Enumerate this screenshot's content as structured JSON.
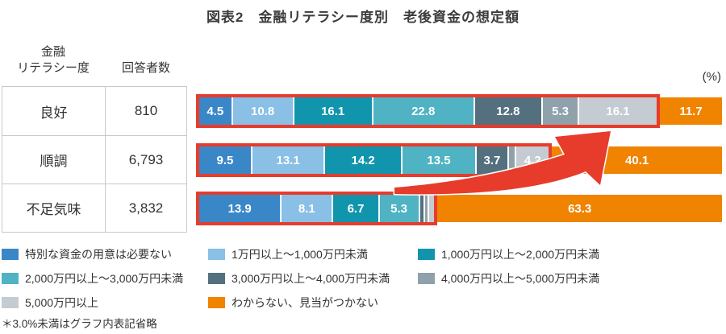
{
  "title": "図表2　金融リテラシー度別　老後資金の想定額",
  "unit_label": "(%)",
  "table": {
    "header": {
      "col1_line1": "金融",
      "col1_line2": "リテラシー度",
      "col2": "回答者数"
    },
    "rows": [
      {
        "literacy": "良好",
        "respondents": "810"
      },
      {
        "literacy": "順調",
        "respondents": "6,793"
      },
      {
        "literacy": "不足気味",
        "respondents": "3,832"
      }
    ]
  },
  "chart_data": {
    "type": "bar",
    "subtype": "horizontal-stacked",
    "unit": "%",
    "xlim": [
      0,
      100
    ],
    "label_min": 3.0,
    "label_rule": "＊3.0%未満はグラフ内表記省略 (segments under 3.0% are unlabeled; their values are estimated from segment widths)",
    "categories": [
      "特別な資金の用意は必要ない",
      "1万円以上～1,000万円未満",
      "1,000万円以上～2,000万円未満",
      "2,000万円以上～3,000万円未満",
      "3,000万円以上～4,000万円未満",
      "4,000万円以上～5,000万円未満",
      "5,000万円以上",
      "わからない、見当がつかない"
    ],
    "colors": [
      "#3a87c8",
      "#8abfe6",
      "#1095ad",
      "#4fb3c3",
      "#54707e",
      "#8fa2ab",
      "#c4cbd2",
      "#f08300"
    ],
    "rows": [
      {
        "group": "良好",
        "respondents": 810,
        "values": [
          4.5,
          10.8,
          16.1,
          22.8,
          12.8,
          5.3,
          16.1,
          11.7
        ]
      },
      {
        "group": "順調",
        "respondents": 6793,
        "values": [
          9.5,
          13.1,
          14.2,
          13.5,
          3.7,
          1.7,
          4.2,
          40.1
        ]
      },
      {
        "group": "不足気味",
        "respondents": 3832,
        "values": [
          13.9,
          8.1,
          6.7,
          5.3,
          0.9,
          0.5,
          1.3,
          63.3
        ]
      }
    ],
    "highlight": {
      "box_color": "#e73b2c",
      "box_note": "red box surrounds all segments except わからない、見当がつかない",
      "arrow_note": "red swoosh arrow from 不足気味 box pointing to end of 良好 box"
    }
  },
  "legend": {
    "columns": [
      [
        {
          "color": "#3a87c8",
          "label": "特別な資金の用意は必要ない"
        },
        {
          "color": "#4fb3c3",
          "label": "2,000万円以上～3,000万円未満"
        },
        {
          "color": "#c4cbd2",
          "label": "5,000万円以上"
        }
      ],
      [
        {
          "color": "#8abfe6",
          "label": "1万円以上～1,000万円未満"
        },
        {
          "color": "#54707e",
          "label": "3,000万円以上～4,000万円未満"
        },
        {
          "color": "#f08300",
          "label": "わからない、見当がつかない"
        }
      ],
      [
        {
          "color": "#1095ad",
          "label": "1,000万円以上～2,000万円未満"
        },
        {
          "color": "#8fa2ab",
          "label": "4,000万円以上～5,000万円未満"
        }
      ]
    ]
  },
  "footnote": "＊3.0%未満はグラフ内表記省略"
}
